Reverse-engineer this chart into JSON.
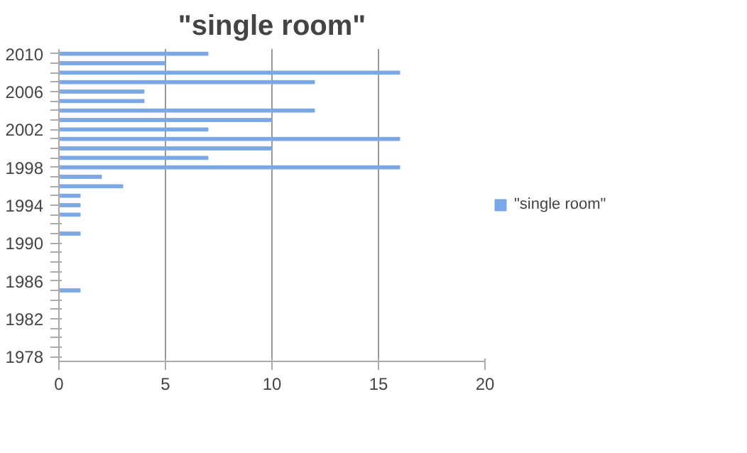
{
  "chart_data": {
    "type": "bar",
    "orientation": "horizontal",
    "title": "\"single room\"",
    "categories": [
      "2010",
      null,
      null,
      null,
      "2006",
      null,
      null,
      null,
      "2002",
      null,
      null,
      null,
      "1998",
      null,
      null,
      null,
      "1994",
      null,
      null,
      null,
      "1990",
      null,
      null,
      null,
      "1986",
      null,
      null,
      null,
      "1982",
      null,
      null,
      null,
      "1978"
    ],
    "series": [
      {
        "name": "\"single room\"",
        "color": "#7aa7e6",
        "values": [
          7,
          5,
          16,
          12,
          4,
          4,
          12,
          10,
          7,
          16,
          10,
          7,
          16,
          2,
          3,
          1,
          1,
          1,
          0,
          1,
          0,
          0,
          0,
          0,
          0,
          1,
          0,
          0,
          0,
          0,
          0,
          0,
          0
        ]
      }
    ],
    "xlim": [
      0,
      20
    ],
    "xticks": [
      0,
      5,
      10,
      15,
      20
    ],
    "grid": "x",
    "legend": "right"
  }
}
